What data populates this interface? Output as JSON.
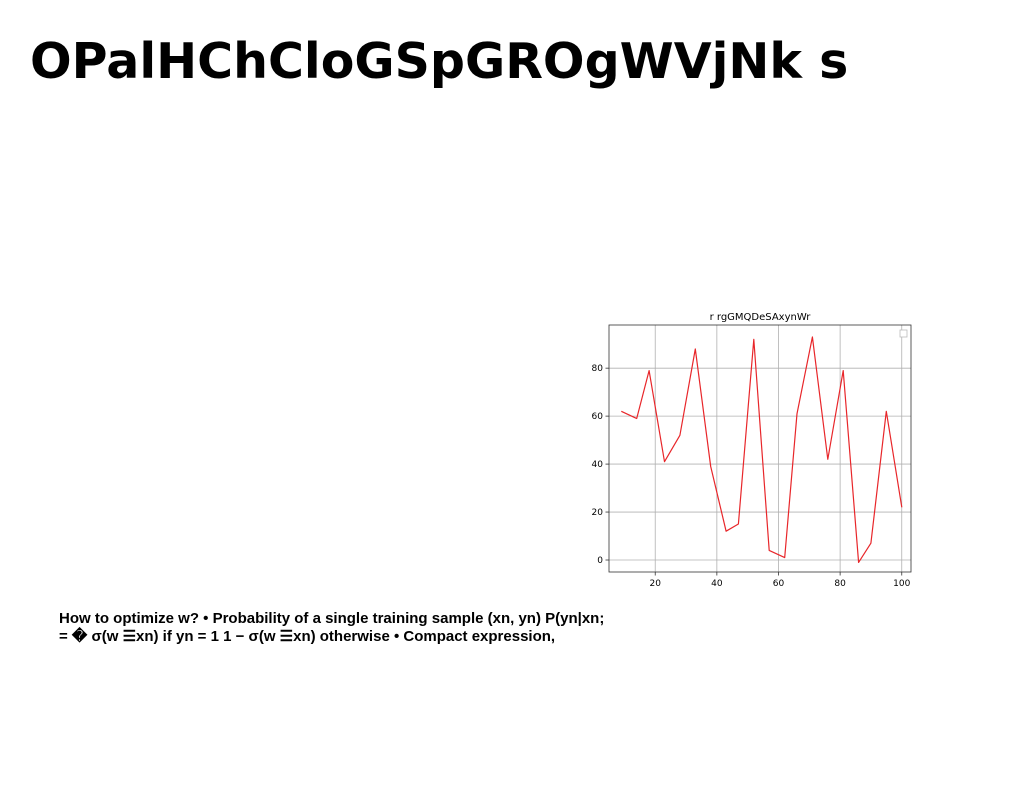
{
  "slide": {
    "title": "OPalHChCloGSpGROgWVjNk s",
    "body_lines": [
      "How to optimize w? • Probability of a single training sample (xn, yn) P(yn|xn;",
      "= � σ(w ☰xn) if yn = 1 1 − σ(w ☰xn) otherwise • Compact expression,"
    ]
  },
  "chart_data": {
    "type": "line",
    "title": "r rgGMQDeSAxynWr",
    "xlabel": "",
    "ylabel": "",
    "xlim": [
      5,
      103
    ],
    "ylim": [
      -5,
      98
    ],
    "x_ticks": [
      20,
      40,
      60,
      80,
      100
    ],
    "y_ticks": [
      0,
      20,
      40,
      60,
      80
    ],
    "grid": true,
    "legend": "top-right (empty)",
    "series": [
      {
        "color": "#e8262a",
        "x": [
          9,
          14,
          18,
          23,
          28,
          33,
          38,
          43,
          47,
          52,
          57,
          62,
          66,
          71,
          76,
          81,
          86,
          90,
          95,
          100
        ],
        "y": [
          62,
          59,
          79,
          41,
          52,
          88,
          39,
          12,
          15,
          92,
          4,
          1,
          61,
          93,
          42,
          79,
          -1,
          7,
          62,
          22
        ]
      }
    ]
  }
}
